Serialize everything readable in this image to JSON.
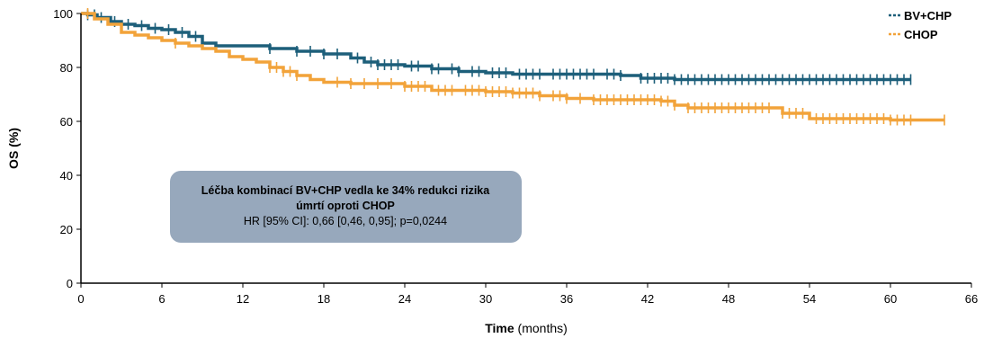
{
  "chart_data": {
    "type": "line",
    "xlabel_bold": "Time",
    "xlabel_rest": " (months)",
    "ylabel": "OS (%)",
    "xlim": [
      0,
      66
    ],
    "ylim": [
      0,
      100
    ],
    "x_ticks": [
      0,
      6,
      12,
      18,
      24,
      30,
      36,
      42,
      48,
      54,
      60,
      66
    ],
    "y_ticks": [
      0,
      20,
      40,
      60,
      80,
      100
    ],
    "legend_position": "top-right",
    "series": [
      {
        "name": "BV+CHP",
        "color": "#1d5f7a",
        "points": [
          [
            0,
            100
          ],
          [
            0.5,
            99.5
          ],
          [
            1.2,
            98.5
          ],
          [
            2.2,
            97
          ],
          [
            3,
            96
          ],
          [
            4,
            95.5
          ],
          [
            5,
            94.5
          ],
          [
            6,
            94
          ],
          [
            7,
            93
          ],
          [
            8,
            91.5
          ],
          [
            9,
            89
          ],
          [
            10,
            88
          ],
          [
            12,
            88
          ],
          [
            14,
            87
          ],
          [
            16,
            86
          ],
          [
            18,
            85
          ],
          [
            20,
            83.5
          ],
          [
            21,
            82
          ],
          [
            22,
            81
          ],
          [
            24,
            80.5
          ],
          [
            26,
            79.5
          ],
          [
            28,
            78.5
          ],
          [
            30,
            78
          ],
          [
            32,
            77.5
          ],
          [
            36,
            77.5
          ],
          [
            40,
            77
          ],
          [
            41.5,
            76
          ],
          [
            44,
            75.5
          ],
          [
            50,
            75.5
          ],
          [
            56,
            75.5
          ],
          [
            61.5,
            75.5
          ]
        ],
        "censor_x": [
          0.5,
          1,
          1.5,
          2.5,
          3.5,
          4.5,
          5.5,
          6.5,
          7.5,
          8.5,
          14,
          16,
          17,
          18,
          19,
          20.5,
          21.5,
          22,
          22.5,
          23,
          23.5,
          24.5,
          25,
          26,
          26.5,
          27.5,
          28,
          29,
          29.5,
          30.5,
          31,
          31.5,
          32.5,
          33,
          33.5,
          34,
          35,
          35.5,
          36,
          36.5,
          37,
          37.5,
          38,
          39,
          39.5,
          40,
          41.5,
          42,
          42.5,
          43,
          43.5,
          44,
          44.5,
          45,
          45.5,
          46,
          46.5,
          47,
          47.5,
          48,
          48.5,
          49,
          49.5,
          50,
          50.5,
          51,
          51.5,
          52,
          52.5,
          53,
          53.5,
          54,
          54.5,
          55,
          55.5,
          56,
          56.5,
          57,
          57.5,
          58,
          58.5,
          59,
          59.5,
          60,
          60.5,
          61,
          61.5
        ]
      },
      {
        "name": "CHOP",
        "color": "#f2a33a",
        "points": [
          [
            0,
            100
          ],
          [
            1,
            98
          ],
          [
            2,
            96
          ],
          [
            3,
            93
          ],
          [
            4,
            92
          ],
          [
            5,
            91
          ],
          [
            6,
            90
          ],
          [
            7,
            89
          ],
          [
            8,
            88
          ],
          [
            9,
            87
          ],
          [
            10,
            86
          ],
          [
            11,
            84
          ],
          [
            12,
            83
          ],
          [
            13,
            82
          ],
          [
            14,
            80
          ],
          [
            15,
            78.5
          ],
          [
            16,
            77
          ],
          [
            17,
            75.5
          ],
          [
            18,
            74.5
          ],
          [
            20,
            74
          ],
          [
            22,
            74
          ],
          [
            24,
            73
          ],
          [
            26,
            71.5
          ],
          [
            28,
            71.5
          ],
          [
            30,
            71
          ],
          [
            32,
            70.5
          ],
          [
            34,
            69.5
          ],
          [
            36,
            68.5
          ],
          [
            38,
            68
          ],
          [
            42,
            68
          ],
          [
            43,
            67.5
          ],
          [
            44,
            66
          ],
          [
            45,
            65
          ],
          [
            48,
            65
          ],
          [
            51,
            65
          ],
          [
            52,
            63
          ],
          [
            54,
            61
          ],
          [
            56,
            61
          ],
          [
            60,
            60.5
          ],
          [
            64,
            60.5
          ]
        ],
        "censor_x": [
          0.5,
          7,
          14,
          14.5,
          15,
          15.5,
          16,
          19,
          20,
          21,
          22,
          23,
          24,
          24.5,
          25,
          25.5,
          26.5,
          27,
          27.5,
          28.5,
          29,
          29.5,
          30,
          30.5,
          31,
          31.5,
          32,
          32.5,
          33,
          33.5,
          34,
          35,
          35.5,
          36,
          37,
          38,
          38.5,
          39,
          39.5,
          40,
          40.5,
          41,
          41.5,
          42,
          42.5,
          43,
          43.5,
          44,
          45,
          45.5,
          46,
          46.5,
          47,
          47.5,
          48,
          48.5,
          49,
          49.5,
          50,
          50.5,
          51,
          52,
          52.5,
          53,
          53.5,
          54.5,
          55,
          55.5,
          56,
          56.5,
          57,
          57.5,
          58,
          58.5,
          59,
          59.5,
          60,
          60.5,
          61,
          61.5,
          64
        ]
      }
    ],
    "annotation": {
      "line1": "Léčba kombinací BV+CHP vedla ke 34% redukci rizika",
      "line2": "úmrtí oproti CHOP",
      "line3": "HR [95% CI]: 0,66 [0,46, 0,95]; p=0,0244",
      "box_color": "#97a8bc"
    }
  }
}
